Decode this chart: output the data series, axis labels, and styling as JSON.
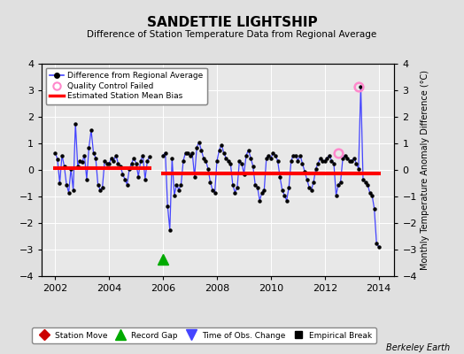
{
  "title": "SANDETTIE LIGHTSHIP",
  "subtitle": "Difference of Station Temperature Data from Regional Average",
  "ylabel_right": "Monthly Temperature Anomaly Difference (°C)",
  "footer": "Berkeley Earth",
  "xlim": [
    2001.5,
    2014.58
  ],
  "ylim": [
    -4,
    4
  ],
  "yticks": [
    -4,
    -3,
    -2,
    -1,
    0,
    1,
    2,
    3,
    4
  ],
  "xticks": [
    2002,
    2004,
    2006,
    2008,
    2010,
    2012,
    2014
  ],
  "bg_color": "#e0e0e0",
  "plot_bg_color": "#e8e8e8",
  "grid_color": "#ffffff",
  "segment1_bias": 0.08,
  "segment1_x_start": 2001.92,
  "segment1_x_end": 2005.58,
  "segment2_bias": -0.13,
  "segment2_x_start": 2005.92,
  "segment2_x_end": 2014.08,
  "record_gap_x": 2006.0,
  "record_gap_y": -3.35,
  "qc_fail_x": 2013.25,
  "qc_fail_y": 3.15,
  "qc_fail2_x": 2012.5,
  "qc_fail2_y": 0.65,
  "data_x": [
    2002.0,
    2002.083,
    2002.167,
    2002.25,
    2002.333,
    2002.417,
    2002.5,
    2002.583,
    2002.667,
    2002.75,
    2002.833,
    2002.917,
    2003.0,
    2003.083,
    2003.167,
    2003.25,
    2003.333,
    2003.417,
    2003.5,
    2003.583,
    2003.667,
    2003.75,
    2003.833,
    2003.917,
    2004.0,
    2004.083,
    2004.167,
    2004.25,
    2004.333,
    2004.417,
    2004.5,
    2004.583,
    2004.667,
    2004.75,
    2004.833,
    2004.917,
    2005.0,
    2005.083,
    2005.167,
    2005.25,
    2005.333,
    2005.417,
    2005.5,
    2006.0,
    2006.083,
    2006.167,
    2006.25,
    2006.333,
    2006.417,
    2006.5,
    2006.583,
    2006.667,
    2006.75,
    2006.833,
    2006.917,
    2007.0,
    2007.083,
    2007.167,
    2007.25,
    2007.333,
    2007.417,
    2007.5,
    2007.583,
    2007.667,
    2007.75,
    2007.833,
    2007.917,
    2008.0,
    2008.083,
    2008.167,
    2008.25,
    2008.333,
    2008.417,
    2008.5,
    2008.583,
    2008.667,
    2008.75,
    2008.833,
    2008.917,
    2009.0,
    2009.083,
    2009.167,
    2009.25,
    2009.333,
    2009.417,
    2009.5,
    2009.583,
    2009.667,
    2009.75,
    2009.833,
    2009.917,
    2010.0,
    2010.083,
    2010.167,
    2010.25,
    2010.333,
    2010.417,
    2010.5,
    2010.583,
    2010.667,
    2010.75,
    2010.833,
    2010.917,
    2011.0,
    2011.083,
    2011.167,
    2011.25,
    2011.333,
    2011.417,
    2011.5,
    2011.583,
    2011.667,
    2011.75,
    2011.833,
    2011.917,
    2012.0,
    2012.083,
    2012.167,
    2012.25,
    2012.333,
    2012.417,
    2012.5,
    2012.583,
    2012.667,
    2012.75,
    2012.833,
    2012.917,
    2013.0,
    2013.083,
    2013.167,
    2013.25,
    2013.333,
    2013.417,
    2013.5,
    2013.583,
    2013.667,
    2013.75,
    2013.833,
    2013.917,
    2014.0
  ],
  "data_y": [
    0.65,
    0.4,
    -0.5,
    0.55,
    0.15,
    -0.55,
    -0.85,
    0.05,
    -0.75,
    1.75,
    0.15,
    0.35,
    0.3,
    0.55,
    -0.35,
    0.85,
    1.5,
    0.65,
    0.45,
    -0.55,
    -0.75,
    -0.65,
    0.35,
    0.25,
    0.25,
    0.45,
    0.35,
    0.55,
    0.25,
    0.15,
    -0.15,
    -0.35,
    -0.55,
    0.05,
    0.25,
    0.45,
    0.25,
    -0.25,
    0.35,
    0.55,
    -0.35,
    0.35,
    0.5,
    0.55,
    0.65,
    -1.35,
    -2.25,
    0.45,
    -0.95,
    -0.55,
    -0.75,
    -0.55,
    0.35,
    0.65,
    0.65,
    0.55,
    0.65,
    -0.25,
    0.85,
    1.05,
    0.75,
    0.45,
    0.35,
    0.05,
    -0.45,
    -0.75,
    -0.85,
    0.35,
    0.75,
    0.95,
    0.65,
    0.45,
    0.35,
    0.25,
    -0.55,
    -0.85,
    -0.65,
    0.35,
    0.25,
    -0.15,
    0.55,
    0.75,
    0.45,
    0.15,
    -0.55,
    -0.65,
    -1.15,
    -0.85,
    -0.75,
    0.45,
    0.55,
    0.45,
    0.65,
    0.55,
    0.35,
    -0.25,
    -0.75,
    -0.95,
    -1.15,
    -0.65,
    0.35,
    0.55,
    0.55,
    0.35,
    0.55,
    0.25,
    -0.05,
    -0.35,
    -0.65,
    -0.75,
    -0.45,
    0.05,
    0.25,
    0.45,
    0.35,
    0.35,
    0.45,
    0.55,
    0.35,
    0.25,
    -0.95,
    -0.55,
    -0.45,
    0.45,
    0.55,
    0.45,
    0.35,
    0.35,
    0.45,
    0.25,
    0.05,
    3.15,
    -0.35,
    -0.45,
    -0.55,
    -0.85,
    -0.95,
    -1.45,
    -2.75,
    -2.9
  ],
  "line_color": "#4444ff",
  "marker_color": "#000000",
  "bias_color": "#ff0000",
  "qc_color": "#ff88cc"
}
